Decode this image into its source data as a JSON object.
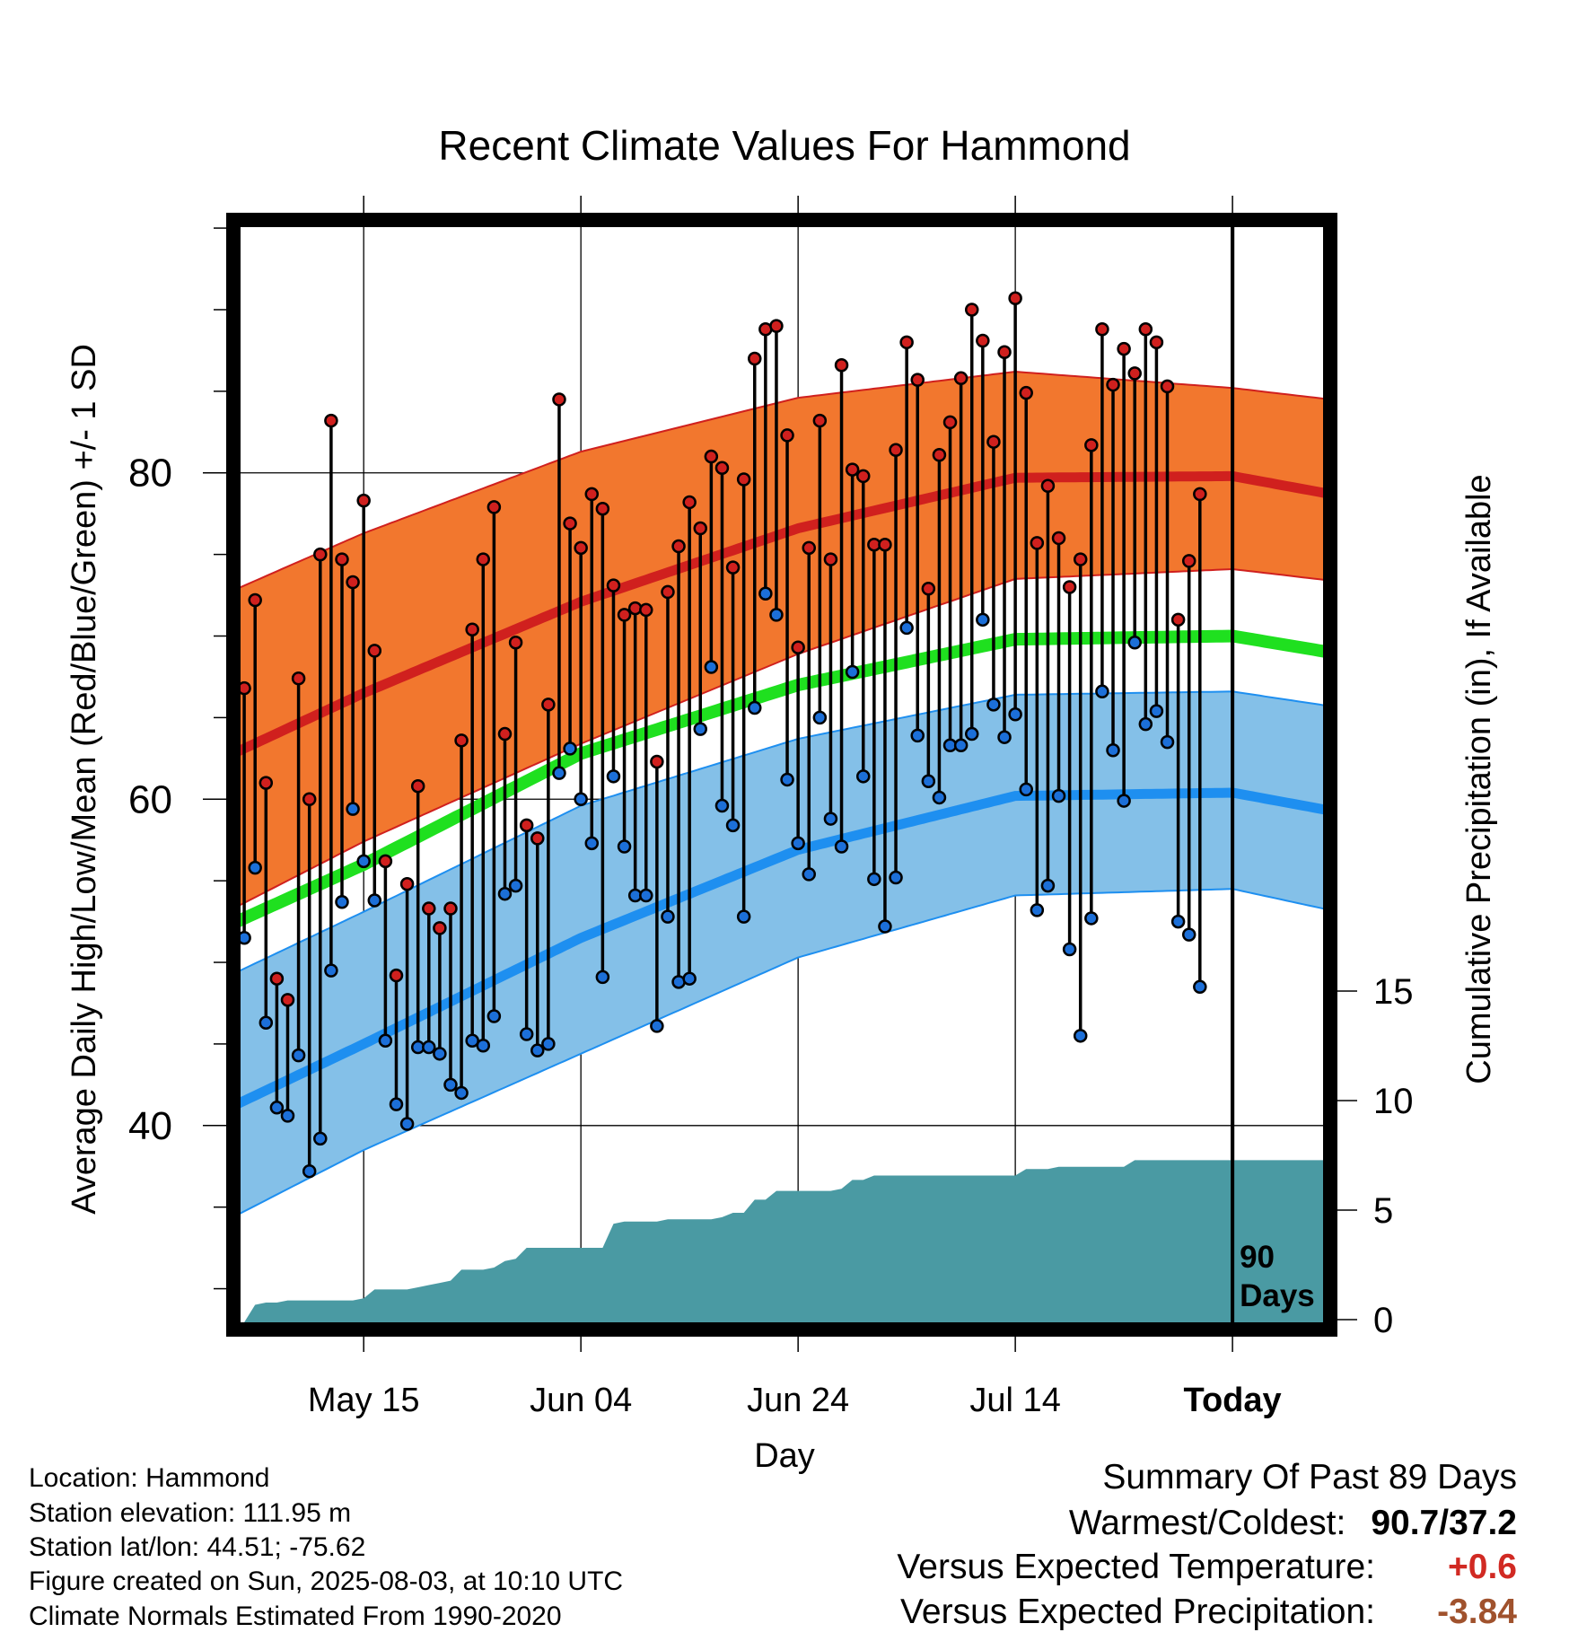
{
  "chart_data": {
    "type": "line",
    "title": "Recent Climate Values For Hammond",
    "xlabel": "Day",
    "ylabel_left": "Average Daily High/Low/Mean (Red/Blue/Green) +/- 1 SD",
    "ylabel_right": "Cumulative Precipitation (in), If Available",
    "x_tick_labels": [
      "May 15",
      "Jun 04",
      "Jun 24",
      "Jul 14",
      "Today"
    ],
    "x_tick_days": [
      -80,
      -60,
      -40,
      -20,
      0
    ],
    "xlim_days": [
      -92,
      9
    ],
    "ylim_temperature": [
      27.5,
      95.5
    ],
    "y_ticks_temperature": [
      40,
      60,
      80
    ],
    "y_ticks_precipitation": [
      0,
      5,
      10,
      15
    ],
    "precip_axis_max": 15,
    "today_marker_label": "90 Days",
    "normals": {
      "days": [
        -92,
        -80,
        -60,
        -40,
        -20,
        0,
        9
      ],
      "high_mean": [
        62.8,
        66.5,
        72.1,
        76.6,
        79.7,
        79.8,
        78.7
      ],
      "high_upper": [
        72.8,
        76.3,
        81.3,
        84.6,
        86.2,
        85.2,
        84.5
      ],
      "high_lower": [
        53.3,
        57.4,
        63.4,
        68.9,
        73.5,
        74.1,
        73.4
      ],
      "mean": [
        52.4,
        56.0,
        62.8,
        67.0,
        69.8,
        70.0,
        69.0
      ],
      "low_mean": [
        41.2,
        45.0,
        51.5,
        56.9,
        60.2,
        60.4,
        59.3
      ],
      "low_upper": [
        49.3,
        53.1,
        59.6,
        63.7,
        66.4,
        66.6,
        65.7
      ],
      "low_lower": [
        34.4,
        38.5,
        44.4,
        50.3,
        54.1,
        54.5,
        53.2
      ]
    },
    "series": [
      {
        "name": "High",
        "color": "#d0201e",
        "values": [
          66.8,
          72.2,
          61.0,
          49.0,
          47.7,
          67.4,
          60.0,
          75.0,
          83.2,
          74.7,
          73.3,
          78.3,
          69.1,
          56.2,
          49.2,
          54.8,
          60.8,
          53.3,
          52.1,
          53.3,
          63.6,
          70.4,
          74.7,
          77.9,
          64.0,
          69.6,
          58.4,
          57.6,
          65.8,
          84.5,
          76.9,
          75.4,
          78.7,
          77.8,
          73.1,
          71.3,
          71.7,
          71.6,
          62.3,
          72.7,
          75.5,
          78.2,
          76.6,
          81.0,
          80.3,
          74.2,
          79.6,
          87.0,
          88.8,
          89.0,
          82.3,
          69.3,
          75.4,
          83.2,
          74.7,
          86.6,
          80.2,
          79.8,
          75.6,
          75.6,
          81.4,
          88.0,
          85.7,
          72.9,
          81.1,
          83.1,
          85.8,
          90.0,
          88.1,
          81.9,
          87.4,
          90.7,
          84.9,
          75.7,
          79.2,
          76.0,
          73.0,
          74.7,
          81.7,
          88.8,
          85.4,
          87.6,
          86.1,
          88.8,
          88.0,
          85.3,
          71.0,
          74.6,
          78.7
        ]
      },
      {
        "name": "Low",
        "color": "#1c6fd8",
        "values": [
          51.5,
          55.8,
          46.3,
          41.1,
          40.6,
          44.3,
          37.2,
          39.2,
          49.5,
          53.7,
          59.4,
          56.2,
          53.8,
          45.2,
          41.3,
          40.1,
          44.8,
          44.8,
          44.4,
          42.5,
          42.0,
          45.2,
          44.9,
          46.7,
          54.2,
          54.7,
          45.6,
          44.6,
          45.0,
          61.6,
          63.1,
          60.0,
          57.3,
          49.1,
          61.4,
          57.1,
          54.1,
          54.1,
          46.1,
          52.8,
          48.8,
          49.0,
          64.3,
          68.1,
          59.6,
          58.4,
          52.8,
          65.6,
          72.6,
          71.3,
          61.2,
          57.3,
          55.4,
          65.0,
          58.8,
          57.1,
          67.8,
          61.4,
          55.1,
          52.2,
          55.2,
          70.5,
          63.9,
          61.1,
          60.1,
          63.3,
          63.3,
          64.0,
          71.0,
          65.8,
          63.8,
          65.2,
          60.6,
          53.2,
          54.7,
          60.2,
          50.8,
          45.5,
          52.7,
          66.6,
          63.0,
          59.9,
          69.6,
          64.6,
          65.4,
          63.5,
          52.5,
          51.7,
          48.5
        ]
      },
      {
        "name": "Cumulative Precipitation",
        "color": "#4a9aa3",
        "values": [
          0.0,
          0.8,
          0.9,
          0.9,
          1.0,
          1.0,
          1.0,
          1.0,
          1.0,
          1.0,
          1.0,
          1.1,
          1.5,
          1.5,
          1.5,
          1.5,
          1.6,
          1.7,
          1.8,
          1.9,
          2.4,
          2.4,
          2.4,
          2.5,
          2.8,
          2.9,
          3.4,
          3.4,
          3.4,
          3.4,
          3.4,
          3.4,
          3.4,
          3.4,
          4.5,
          4.6,
          4.6,
          4.6,
          4.6,
          4.7,
          4.7,
          4.7,
          4.7,
          4.7,
          4.8,
          5.0,
          5.0,
          5.6,
          5.6,
          6.0,
          6.0,
          6.0,
          6.0,
          6.0,
          6.0,
          6.1,
          6.5,
          6.5,
          6.7,
          6.7,
          6.7,
          6.7,
          6.7,
          6.7,
          6.7,
          6.7,
          6.7,
          6.7,
          6.7,
          6.7,
          6.7,
          6.7,
          7.0,
          7.0,
          7.0,
          7.1,
          7.1,
          7.1,
          7.1,
          7.1,
          7.1,
          7.1,
          7.4,
          7.4,
          7.4,
          7.4,
          7.4,
          7.4,
          7.4,
          7.4,
          7.4,
          7.4,
          7.4,
          7.4,
          7.4,
          7.4,
          7.4,
          7.4,
          7.4,
          7.4,
          7.4,
          7.4
        ]
      }
    ],
    "x_days_start": -91,
    "precip_days_start": -91
  },
  "info": {
    "location": "Location: Hammond",
    "elevation": "Station elevation: 111.95 m",
    "latlon": "Station lat/lon: 44.51; -75.62",
    "created": "Figure created on Sun, 2025-08-03, at 10:10 UTC",
    "normals": "Climate Normals Estimated From 1990-2020"
  },
  "summary": {
    "title": "Summary Of Past 89 Days",
    "warm_cold_label": "Warmest/Coldest:",
    "warm_cold_value": "90.7/37.2",
    "temp_label": "Versus Expected Temperature:",
    "temp_value": "+0.6",
    "temp_color": "#d12a23",
    "precip_label": "Versus Expected Precipitation:",
    "precip_value": "-3.84",
    "precip_color": "#a0522d"
  },
  "colors": {
    "high_band": "#f2772e",
    "high_line": "#d0201e",
    "low_band": "#84c0e8",
    "low_line": "#1e8ff0",
    "mean_line": "#1fe01f",
    "precip_fill": "#4a9aa3"
  }
}
